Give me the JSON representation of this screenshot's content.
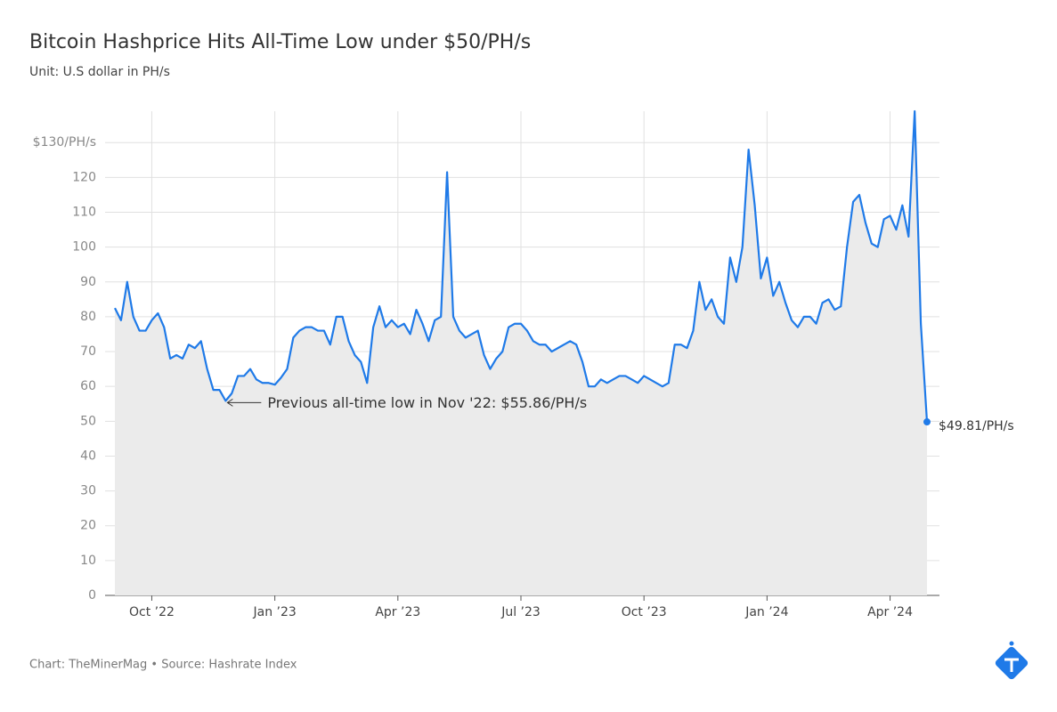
{
  "chart_data": {
    "type": "line",
    "title": "Bitcoin Hashprice Hits All-Time Low under $50/PH/s",
    "subtitle": "Unit: U.S dollar in PH/s",
    "source": "Chart: TheMinerMag • Source: Hashrate Index",
    "annotations": [
      {
        "text": "Previous all-time low in Nov '22: $55.86/PH/s",
        "index": 18
      }
    ],
    "color": "#1f7ae8",
    "categories": [
      null,
      null,
      null,
      null,
      null,
      null,
      "Oct ’22",
      null,
      null,
      null,
      null,
      null,
      null,
      null,
      null,
      null,
      null,
      null,
      null,
      null,
      null,
      null,
      null,
      null,
      null,
      null,
      "Jan ’23",
      null,
      null,
      null,
      null,
      null,
      null,
      null,
      null,
      null,
      null,
      null,
      null,
      null,
      null,
      null,
      null,
      null,
      null,
      null,
      "Apr ’23",
      null,
      null,
      null,
      null,
      null,
      null,
      null,
      null,
      null,
      null,
      null,
      null,
      null,
      null,
      null,
      null,
      null,
      null,
      null,
      "Jul ’23",
      null,
      null,
      null,
      null,
      null,
      null,
      null,
      null,
      null,
      null,
      null,
      null,
      null,
      null,
      null,
      null,
      null,
      null,
      null,
      "Oct ’23",
      null,
      null,
      null,
      null,
      null,
      null,
      null,
      null,
      null,
      null,
      null,
      null,
      null,
      null,
      null,
      null,
      null,
      null,
      null,
      "Jan ’24",
      null,
      null,
      null,
      null,
      null,
      null,
      null,
      null,
      null,
      null,
      null,
      null,
      null,
      null,
      null,
      null,
      null,
      null,
      null,
      "Apr ’24",
      null,
      null,
      null,
      null,
      null,
      null
    ],
    "values": [
      82.5,
      79,
      90,
      80,
      76,
      76,
      79,
      81,
      77,
      68,
      69,
      68,
      72,
      71,
      73,
      65,
      59,
      59,
      55.86,
      58,
      63,
      63,
      65,
      62,
      61,
      61,
      60.5,
      62.5,
      65,
      74,
      76,
      77,
      77,
      76,
      76,
      72,
      80,
      80,
      73,
      69,
      67,
      61,
      77,
      83,
      77,
      79,
      77,
      78,
      75,
      82,
      78,
      73,
      79,
      80,
      121.5,
      80,
      76,
      74,
      75,
      76,
      69,
      65,
      68,
      70,
      77,
      78,
      78,
      76,
      73,
      72,
      72,
      70,
      71,
      72,
      73,
      72,
      67,
      60,
      60,
      62,
      61,
      62,
      63,
      63,
      62,
      61,
      63,
      62,
      61,
      60,
      61,
      72,
      72,
      71,
      76,
      90,
      82,
      85,
      80,
      78,
      97,
      90,
      100,
      128,
      112,
      91,
      97,
      86,
      90,
      84,
      79,
      77,
      80,
      80,
      78,
      84,
      85,
      82,
      83,
      100,
      113,
      115,
      107,
      101,
      100,
      108,
      109,
      105,
      112,
      103,
      139,
      78,
      49.81
    ],
    "value_labels": [
      null,
      null,
      null,
      null,
      null,
      null,
      null,
      null,
      null,
      null,
      null,
      null,
      null,
      null,
      null,
      null,
      null,
      null,
      null,
      null,
      null,
      null,
      null,
      null,
      null,
      null,
      null,
      null,
      null,
      null,
      null,
      null,
      null,
      null,
      null,
      null,
      null,
      null,
      null,
      null,
      null,
      null,
      null,
      null,
      null,
      null,
      null,
      null,
      null,
      null,
      null,
      null,
      null,
      null,
      null,
      null,
      null,
      null,
      null,
      null,
      null,
      null,
      null,
      null,
      null,
      null,
      null,
      null,
      null,
      null,
      null,
      null,
      null,
      null,
      null,
      null,
      null,
      null,
      null,
      null,
      null,
      null,
      null,
      null,
      null,
      null,
      null,
      null,
      null,
      null,
      null,
      null,
      null,
      null,
      null,
      null,
      null,
      null,
      null,
      null,
      null,
      null,
      null,
      null,
      null,
      null,
      null,
      null,
      null,
      null,
      null,
      null,
      null,
      null,
      null,
      null,
      null,
      null,
      null,
      null,
      null,
      null,
      null,
      null,
      null,
      null,
      null,
      null,
      null,
      null,
      null,
      null,
      "$49.81/PH/s"
    ],
    "ylim": [
      0,
      139
    ],
    "yticks": [
      0,
      10,
      20,
      30,
      40,
      50,
      60,
      70,
      80,
      90,
      100,
      110,
      120,
      {
        "value": 130,
        "label": "$130/PH/s"
      }
    ],
    "grid": true
  }
}
